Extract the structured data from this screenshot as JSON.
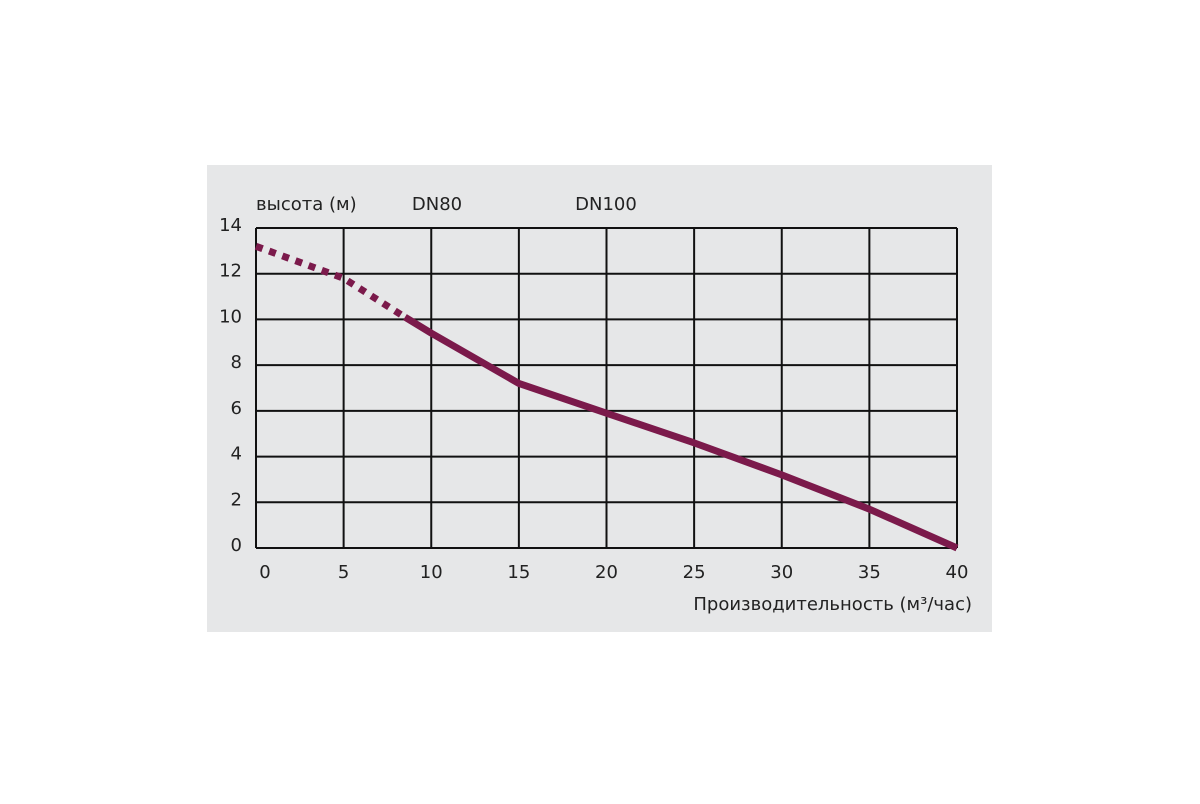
{
  "chart_data": {
    "type": "line",
    "y_label": "высота (м)",
    "x_label": "Производительность (м³/час)",
    "annotations": [
      "DN80",
      "DN100"
    ],
    "x": [
      0,
      5,
      8.5,
      10,
      15,
      20,
      25,
      30,
      35,
      40
    ],
    "series": [
      {
        "color": "#7b1a4b",
        "dashed": true,
        "values": [
          13.2,
          11.8,
          10.1,
          null,
          null,
          null,
          null,
          null,
          null,
          null
        ]
      },
      {
        "color": "#7b1a4b",
        "dashed": false,
        "values": [
          null,
          null,
          10.1,
          9.4,
          7.2,
          5.9,
          4.6,
          3.2,
          1.7,
          0
        ]
      }
    ],
    "xlim": [
      0,
      40
    ],
    "xticks": [
      0,
      5,
      10,
      15,
      20,
      25,
      30,
      35,
      40
    ],
    "ylim": [
      0,
      14
    ],
    "yticks": [
      0,
      2,
      4,
      6,
      8,
      10,
      12,
      14
    ],
    "grid": true
  }
}
